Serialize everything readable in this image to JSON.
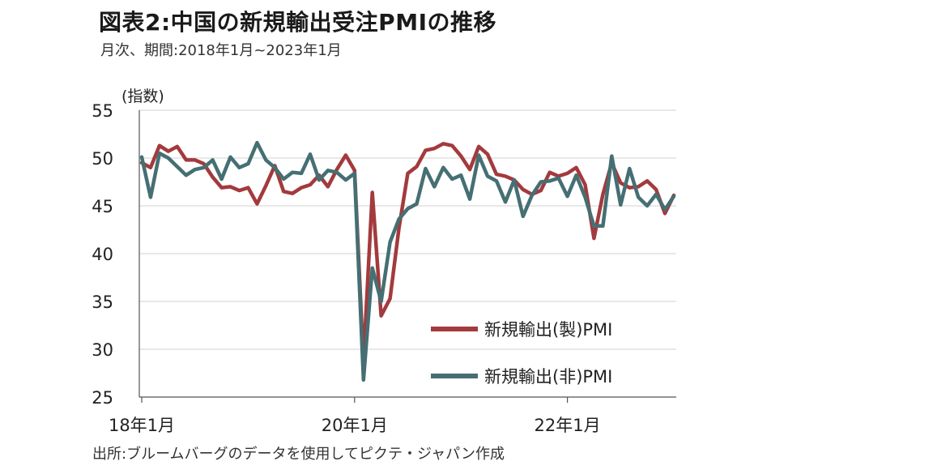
{
  "title": "図表2:中国の新規輸出受注PMIの推移",
  "subtitle": "月次、期間:2018年1月~2023年1月",
  "source": "出所:ブルームバーグのデータを使用してピクテ・ジャパン作成",
  "chart_data": {
    "type": "line",
    "ylabel": "(指数)",
    "ylim": [
      25,
      55
    ],
    "yticks": [
      25,
      30,
      35,
      40,
      45,
      50,
      55
    ],
    "xtick_labels": [
      "18年1月",
      "20年1月",
      "22年1月"
    ],
    "xtick_index": [
      0,
      24,
      48
    ],
    "grid": true,
    "legend_position": "bottom-right",
    "x": [
      "2018-01",
      "2018-02",
      "2018-03",
      "2018-04",
      "2018-05",
      "2018-06",
      "2018-07",
      "2018-08",
      "2018-09",
      "2018-10",
      "2018-11",
      "2018-12",
      "2019-01",
      "2019-02",
      "2019-03",
      "2019-04",
      "2019-05",
      "2019-06",
      "2019-07",
      "2019-08",
      "2019-09",
      "2019-10",
      "2019-11",
      "2019-12",
      "2020-01",
      "2020-02",
      "2020-03",
      "2020-04",
      "2020-05",
      "2020-06",
      "2020-07",
      "2020-08",
      "2020-09",
      "2020-10",
      "2020-11",
      "2020-12",
      "2021-01",
      "2021-02",
      "2021-03",
      "2021-04",
      "2021-05",
      "2021-06",
      "2021-07",
      "2021-08",
      "2021-09",
      "2021-10",
      "2021-11",
      "2021-12",
      "2022-01",
      "2022-02",
      "2022-03",
      "2022-04",
      "2022-05",
      "2022-06",
      "2022-07",
      "2022-08",
      "2022-09",
      "2022-10",
      "2022-11",
      "2022-12",
      "2023-01"
    ],
    "series": [
      {
        "name": "新規輸出(製)PMI",
        "color": "#a33a3d",
        "values": [
          49.5,
          49.0,
          51.3,
          50.7,
          51.2,
          49.8,
          49.8,
          49.4,
          48.0,
          46.9,
          47.0,
          46.6,
          46.9,
          45.2,
          47.1,
          49.2,
          46.5,
          46.3,
          46.9,
          47.2,
          48.2,
          47.0,
          48.8,
          50.3,
          48.7,
          28.7,
          46.4,
          33.5,
          35.3,
          42.6,
          48.4,
          49.1,
          50.8,
          51.0,
          51.5,
          51.3,
          50.2,
          48.8,
          51.2,
          50.4,
          48.3,
          48.1,
          47.7,
          46.7,
          46.2,
          46.6,
          48.5,
          48.1,
          48.4,
          49.0,
          47.2,
          41.6,
          46.2,
          49.5,
          47.4,
          46.9,
          47.0,
          47.6,
          46.7,
          44.2,
          46.1
        ]
      },
      {
        "name": "新規輸出(非)PMI",
        "color": "#456f73",
        "values": [
          50.1,
          45.9,
          50.5,
          50.0,
          49.1,
          48.2,
          48.8,
          49.0,
          49.8,
          47.8,
          50.1,
          49.0,
          49.4,
          51.6,
          49.8,
          49.0,
          47.8,
          48.5,
          48.4,
          50.4,
          47.7,
          48.7,
          48.5,
          47.7,
          48.4,
          26.8,
          38.5,
          35.0,
          41.2,
          43.6,
          44.7,
          45.2,
          48.9,
          47.0,
          49.0,
          47.8,
          48.2,
          45.7,
          50.3,
          48.1,
          47.6,
          45.4,
          47.7,
          43.9,
          46.1,
          47.5,
          47.6,
          47.9,
          46.0,
          48.2,
          45.9,
          42.9,
          42.9,
          50.2,
          45.1,
          48.9,
          45.9,
          45.0,
          46.2,
          44.6,
          46.0
        ]
      }
    ]
  }
}
